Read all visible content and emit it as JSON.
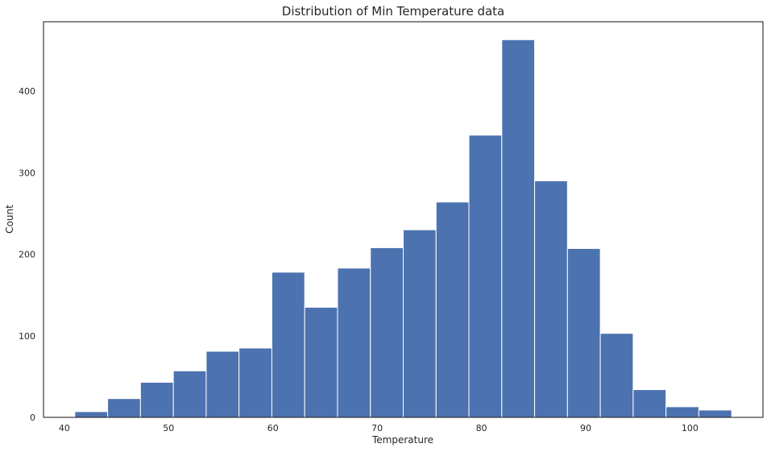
{
  "chart_data": {
    "type": "bar",
    "title": "Distribution of Min Temperature data",
    "xlabel": "Temperature",
    "ylabel": "Count",
    "xlim": [
      38,
      107
    ],
    "ylim": [
      0,
      485
    ],
    "x_ticks": [
      40,
      50,
      60,
      70,
      80,
      90,
      100
    ],
    "y_ticks": [
      0,
      100,
      200,
      300,
      400
    ],
    "bin_edges": [
      41,
      44.15,
      47.3,
      50.45,
      53.6,
      56.75,
      59.9,
      63.05,
      66.2,
      69.35,
      72.5,
      75.65,
      78.8,
      81.95,
      85.1,
      88.25,
      91.4,
      94.55,
      97.7,
      100.85,
      104
    ],
    "values": [
      7,
      23,
      43,
      57,
      81,
      85,
      178,
      135,
      183,
      208,
      230,
      264,
      346,
      463,
      290,
      207,
      103,
      34,
      13,
      9
    ],
    "bar_color": "#4c72b0",
    "grid": false,
    "legend": "none"
  }
}
